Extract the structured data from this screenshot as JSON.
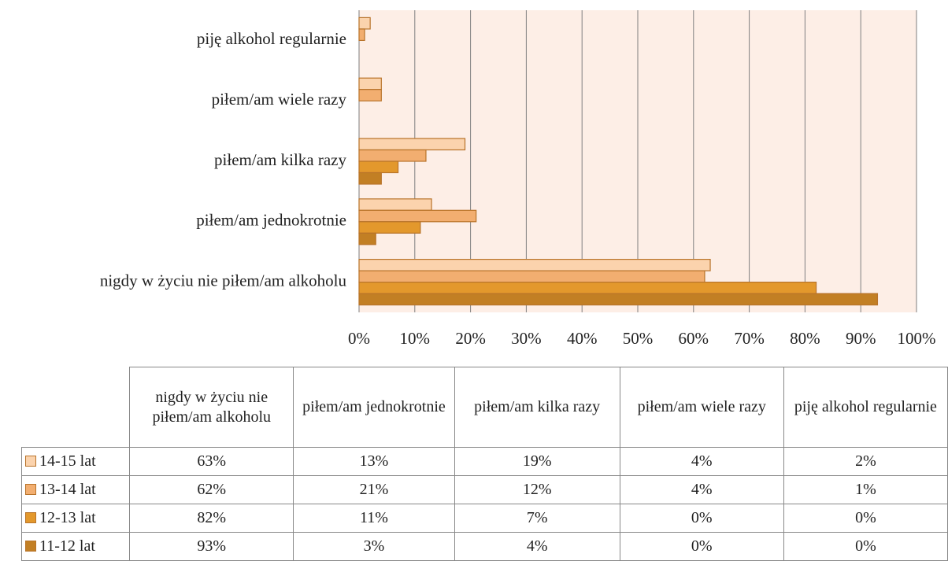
{
  "chart_data": {
    "type": "bar",
    "orientation": "horizontal",
    "categories": [
      "nigdy w życiu nie piłem/am alkoholu",
      "piłem/am jednokrotnie",
      "piłem/am kilka razy",
      "piłem/am wiele razy",
      "piję alkohol regularnie"
    ],
    "series": [
      {
        "name": "14-15 lat",
        "color": "#fbd3ad",
        "values": [
          63,
          13,
          19,
          4,
          2
        ],
        "value_labels": [
          "63%",
          "13%",
          "19%",
          "4%",
          "2%"
        ]
      },
      {
        "name": "13-14 lat",
        "color": "#f2ae70",
        "values": [
          62,
          21,
          12,
          4,
          1
        ],
        "value_labels": [
          "62%",
          "21%",
          "12%",
          "4%",
          "1%"
        ]
      },
      {
        "name": "12-13 lat",
        "color": "#e3982c",
        "values": [
          82,
          11,
          7,
          0,
          0
        ],
        "value_labels": [
          "82%",
          "11%",
          "7%",
          "0%",
          "0%"
        ]
      },
      {
        "name": "11-12 lat",
        "color": "#c27f24",
        "values": [
          93,
          3,
          4,
          0,
          0
        ],
        "value_labels": [
          "93%",
          "3%",
          "4%",
          "0%",
          "0%"
        ]
      }
    ],
    "xlim": [
      0,
      100
    ],
    "xticks": [
      {
        "value": 0,
        "label": "0%"
      },
      {
        "value": 10,
        "label": "10%"
      },
      {
        "value": 20,
        "label": "20%"
      },
      {
        "value": 30,
        "label": "30%"
      },
      {
        "value": 40,
        "label": "40%"
      },
      {
        "value": 50,
        "label": "50%"
      },
      {
        "value": 60,
        "label": "60%"
      },
      {
        "value": 70,
        "label": "70%"
      },
      {
        "value": 80,
        "label": "80%"
      },
      {
        "value": 90,
        "label": "90%"
      },
      {
        "value": 100,
        "label": "100%"
      }
    ],
    "grid": true,
    "data_table": true
  }
}
